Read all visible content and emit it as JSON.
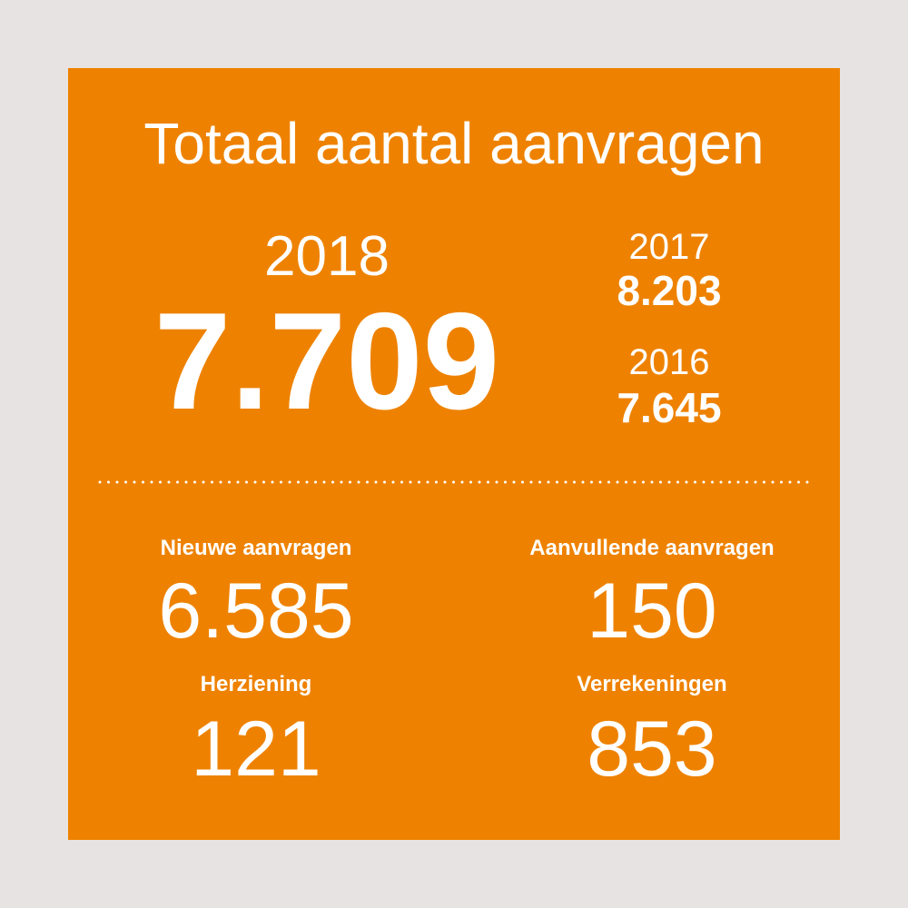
{
  "header": {
    "title": "Totaal aantal aanvragen"
  },
  "current": {
    "year": "2018",
    "total": "7.709"
  },
  "previous": [
    {
      "year": "2017",
      "total": "8.203"
    },
    {
      "year": "2016",
      "total": "7.645"
    }
  ],
  "breakdown": [
    {
      "label": "Nieuwe aanvragen",
      "value": "6.585"
    },
    {
      "label": "Aanvullende aanvragen",
      "value": "150"
    },
    {
      "label": "Herziening",
      "value": "121"
    },
    {
      "label": "Verrekeningen",
      "value": "853"
    }
  ]
}
